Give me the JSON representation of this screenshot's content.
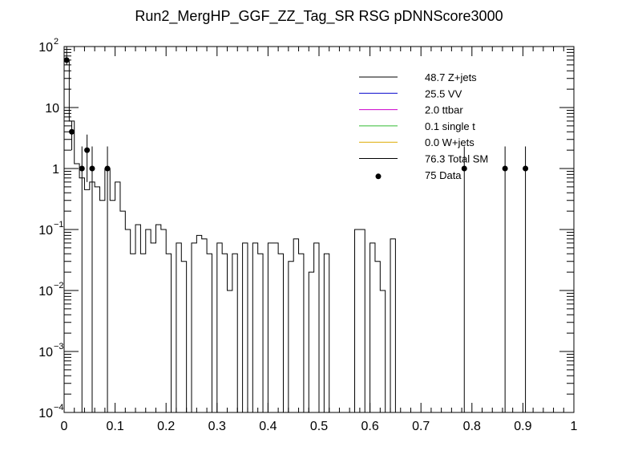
{
  "chart_data": {
    "type": "histogram",
    "title": "Run2_MergHP_GGF_ZZ_Tag_SR RSG  pDNNScore3000",
    "xlabel": "",
    "ylabel": "",
    "xlim": [
      0,
      1
    ],
    "ylim": [
      0.0001,
      100
    ],
    "yscale": "log",
    "x_ticks": [
      {
        "value": 0,
        "label": "0"
      },
      {
        "value": 0.1,
        "label": "0.1"
      },
      {
        "value": 0.2,
        "label": "0.2"
      },
      {
        "value": 0.3,
        "label": "0.3"
      },
      {
        "value": 0.4,
        "label": "0.4"
      },
      {
        "value": 0.5,
        "label": "0.5"
      },
      {
        "value": 0.6,
        "label": "0.6"
      },
      {
        "value": 0.7,
        "label": "0.7"
      },
      {
        "value": 0.8,
        "label": "0.8"
      },
      {
        "value": 0.9,
        "label": "0.9"
      },
      {
        "value": 1,
        "label": "1"
      }
    ],
    "y_ticks": [
      {
        "value": 0.0001,
        "base": "10",
        "exp": "−4"
      },
      {
        "value": 0.001,
        "base": "10",
        "exp": "−3"
      },
      {
        "value": 0.01,
        "base": "10",
        "exp": "−2"
      },
      {
        "value": 0.1,
        "base": "10",
        "exp": "−1"
      },
      {
        "value": 1,
        "base": "1",
        "exp": ""
      },
      {
        "value": 10,
        "base": "10",
        "exp": ""
      },
      {
        "value": 100,
        "base": "10",
        "exp": "2"
      }
    ],
    "legend": [
      {
        "label": "48.7 Z+jets",
        "color": "#000000",
        "marker": "line"
      },
      {
        "label": "25.5 VV",
        "color": "#0000cc",
        "marker": "line"
      },
      {
        "label": "2.0 ttbar",
        "color": "#cc00cc",
        "marker": "line"
      },
      {
        "label": "0.1 single t",
        "color": "#33bb33",
        "marker": "line"
      },
      {
        "label": "0.0 W+jets",
        "color": "#ddaa00",
        "marker": "line"
      },
      {
        "label": "76.3 Total SM",
        "color": "#000000",
        "marker": "line"
      },
      {
        "label": "75 Data",
        "color": "#000000",
        "marker": "dot"
      }
    ],
    "legend_position": "top-right",
    "bin_width": 0.01,
    "series": [
      {
        "name": "Total SM",
        "color": "#000000",
        "values": [
          60,
          6,
          1.2,
          0.7,
          0.45,
          0.6,
          0.5,
          0.3,
          1.0,
          0.3,
          0.6,
          0.2,
          0.1,
          0.04,
          0.12,
          0.04,
          0.1,
          0.06,
          0.12,
          0.1,
          0.04,
          0.0001,
          0.06,
          0.03,
          0.0001,
          0.06,
          0.08,
          0.07,
          0.04,
          0.0001,
          0.06,
          0.04,
          0.01,
          0.04,
          0.0001,
          0.06,
          0.0001,
          0.06,
          0.04,
          0.0001,
          0.06,
          0.06,
          0.04,
          0.0001,
          0.03,
          0.07,
          0.04,
          0.0001,
          0.02,
          0.06,
          0.0001,
          0.04,
          0.0001,
          0.0001,
          0.0001,
          0.0001,
          0.0001,
          0.1,
          0.1,
          0.0001,
          0.06,
          0.03,
          0.01,
          0.0001,
          0.07,
          0.0001,
          0.0001,
          0.0001,
          0.0001,
          0.0001,
          0.0001,
          0.0001,
          0.0001,
          0.0001,
          0.0001,
          0.0001,
          0.0001,
          0.0001,
          0.0001,
          0.0001,
          0.0001,
          0.0001,
          0.0001,
          0.0001,
          0.0001,
          0.0001,
          0.0001,
          0.0001,
          0.0001,
          0.0001,
          0.0001,
          0.0001,
          0.0001,
          0.0001,
          0.0001,
          0.0001,
          0.0001,
          0.0001,
          0.0001,
          0.0001
        ]
      }
    ],
    "data_points": [
      {
        "x": 0.005,
        "y": 60,
        "err_low": 50,
        "err_high": 100
      },
      {
        "x": 0.015,
        "y": 4,
        "err_low": 2,
        "err_high": 6
      },
      {
        "x": 0.035,
        "y": 1,
        "err_low": 0.0001,
        "err_high": 2.3
      },
      {
        "x": 0.045,
        "y": 2,
        "err_low": 0.6,
        "err_high": 3.6
      },
      {
        "x": 0.055,
        "y": 1,
        "err_low": 0.0001,
        "err_high": 2.3
      },
      {
        "x": 0.085,
        "y": 1,
        "err_low": 0.0001,
        "err_high": 2.3
      },
      {
        "x": 0.785,
        "y": 1,
        "err_low": 0.0001,
        "err_high": 2.3
      },
      {
        "x": 0.865,
        "y": 1,
        "err_low": 0.0001,
        "err_high": 2.3
      },
      {
        "x": 0.905,
        "y": 1,
        "err_low": 0.0001,
        "err_high": 2.3
      }
    ]
  }
}
